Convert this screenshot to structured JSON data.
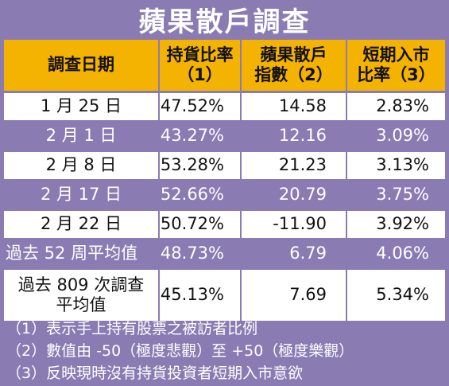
{
  "title": "蘋果散戶調查",
  "headers": [
    "調查日期",
    "持貨比率\n（1）",
    "蘋果散戶\n指數（2）",
    "短期入市\n比率（3）"
  ],
  "rows": [
    [
      "1 月 25 日",
      "47.52%",
      "14.58",
      "2.83%"
    ],
    [
      "2 月 1 日",
      "43.27%",
      "12.16",
      "3.09%"
    ],
    [
      "2 月 8 日",
      "53.28%",
      "21.23",
      "3.13%"
    ],
    [
      "2 月 17 日",
      "52.66%",
      "20.79",
      "3.75%"
    ],
    [
      "2 月 22 日",
      "50.72%",
      "-11.90",
      "3.92%"
    ],
    [
      "過去 52 周平均值",
      "48.73%",
      "6.79",
      "4.06%"
    ],
    [
      "過去 809 次調查\n平均值",
      "45.13%",
      "7.69",
      "5.34%"
    ]
  ],
  "notes": [
    "（1）表示手上持有股票之被訪者比例",
    "（2）數值由 -50（極度悲觀）至 +50（極度樂觀）",
    "（3）反映現時沒有持貨投資者短期入市意欲"
  ],
  "colors": {
    "purple": "#8a7bb3",
    "orange": "#f5b301",
    "white": "#ffffff"
  }
}
